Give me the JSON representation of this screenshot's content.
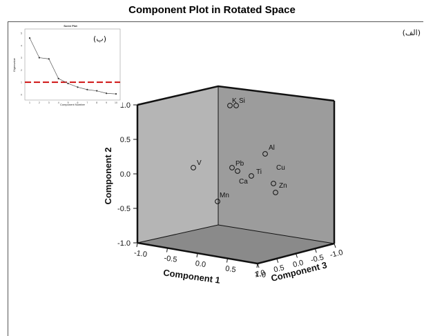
{
  "title": "Component Plot in Rotated Space",
  "panel_label_a": "(الف)",
  "chart_data": [
    {
      "type": "scatter",
      "projection": "3d",
      "title": "Component Plot in Rotated Space",
      "axes": {
        "component1": {
          "label": "Component 1",
          "range": [
            -1.0,
            1.0
          ],
          "ticks": [
            "-1.0",
            "-0.5",
            "0.0",
            "0.5",
            "1.0"
          ]
        },
        "component2": {
          "label": "Component 2",
          "range": [
            -1.0,
            1.0
          ],
          "ticks": [
            "1.0",
            "0.5",
            "0.0",
            "-0.5",
            "-1.0"
          ]
        },
        "component3": {
          "label": "Component 3",
          "range": [
            -1.0,
            1.0
          ],
          "ticks": [
            "1.0",
            "0.5",
            "0.0",
            "-0.5",
            "-1.0"
          ]
        }
      },
      "points": [
        {
          "label": "K",
          "c2": 0.99
        },
        {
          "label": "Si",
          "c2": 0.99
        },
        {
          "label": "Al",
          "c2": 0.29
        },
        {
          "label": "V",
          "c2": 0.09
        },
        {
          "label": "Pb",
          "c2": 0.09
        },
        {
          "label": "Cu",
          "c2": 0.1
        },
        {
          "label": "Ca",
          "c2": 0.04
        },
        {
          "label": "Ti",
          "c2": -0.03
        },
        {
          "label": "Zn",
          "c2": -0.12
        },
        {
          "label": "Mn",
          "c2": -0.4
        }
      ]
    },
    {
      "type": "line",
      "title": "Scree Plot",
      "panel_label": "(ب)",
      "xlabel": "Component Number",
      "ylabel": "Eigenvalue",
      "x": [
        1,
        2,
        3,
        4,
        5,
        6,
        7,
        8,
        9,
        10
      ],
      "values": [
        4.6,
        3.0,
        2.9,
        1.3,
        0.9,
        0.6,
        0.4,
        0.3,
        0.1,
        0.05
      ],
      "threshold": 1,
      "threshold_color": "#cc0000",
      "ylim": [
        0,
        5
      ]
    }
  ]
}
